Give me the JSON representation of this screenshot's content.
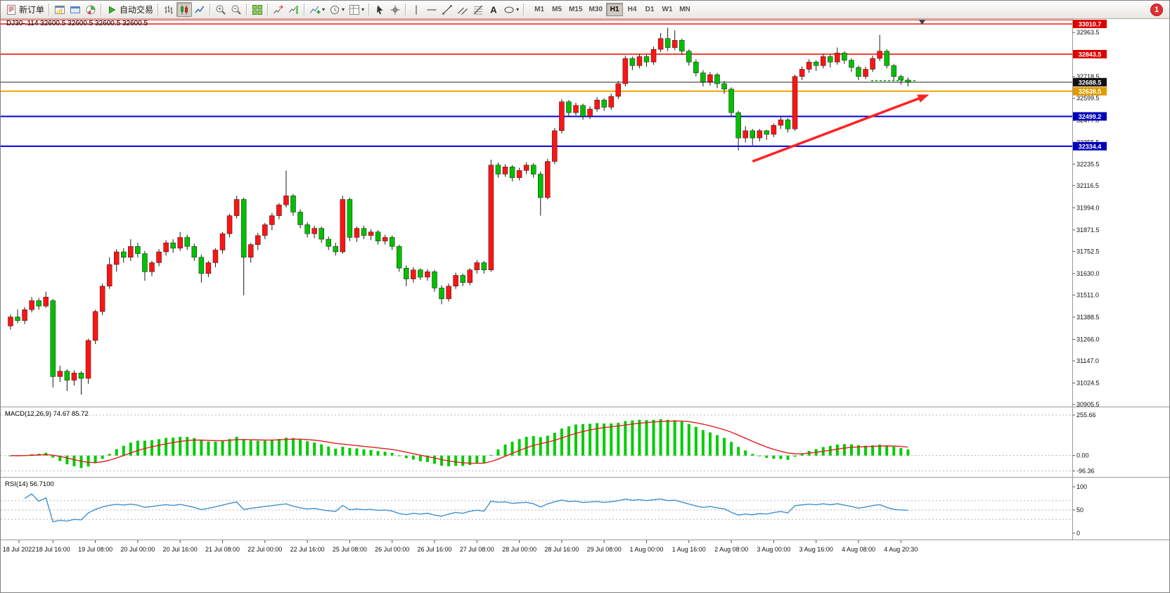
{
  "toolbar": {
    "buttons": [
      {
        "name": "new-order-button",
        "icon": "new-order-icon",
        "label": "新订单"
      },
      {
        "separator": true
      },
      {
        "name": "new-chart-button",
        "icon": "new-chart-icon"
      },
      {
        "name": "profiles-button",
        "icon": "profiles-icon"
      },
      {
        "name": "navigator-button",
        "icon": "navigator-icon"
      },
      {
        "separator": true
      },
      {
        "name": "auto-trading-button",
        "icon": "auto-trading-icon",
        "label": "自动交易"
      },
      {
        "separator": true
      },
      {
        "name": "bar-chart-button",
        "icon": "bar-chart-icon"
      },
      {
        "name": "candlestick-chart-button",
        "icon": "candlestick-chart-icon",
        "active": true
      },
      {
        "name": "line-chart-button",
        "icon": "line-chart-icon"
      },
      {
        "separator": true
      },
      {
        "name": "zoom-in-button",
        "icon": "zoom-in-icon"
      },
      {
        "name": "zoom-out-button",
        "icon": "zoom-out-icon"
      },
      {
        "separator": true
      },
      {
        "name": "tile-windows-button",
        "icon": "tile-windows-icon"
      },
      {
        "separator": true
      },
      {
        "name": "auto-scroll-button",
        "icon": "auto-scroll-icon"
      },
      {
        "name": "chart-shift-button",
        "icon": "chart-shift-icon"
      },
      {
        "separator": true
      },
      {
        "name": "indicators-button",
        "icon": "indicators-icon",
        "dropdown": true
      },
      {
        "name": "periods-button",
        "icon": "periods-icon",
        "dropdown": true
      },
      {
        "name": "templates-button",
        "icon": "templates-icon",
        "dropdown": true
      },
      {
        "separator": true
      },
      {
        "name": "cursor-button",
        "icon": "cursor-icon"
      },
      {
        "name": "crosshair-button",
        "icon": "crosshair-icon"
      },
      {
        "separator": true
      },
      {
        "name": "vertical-line-button",
        "icon": "vertical-line-icon"
      },
      {
        "name": "horizontal-line-button",
        "icon": "horizontal-line-icon"
      },
      {
        "name": "trendline-button",
        "icon": "trendline-icon"
      },
      {
        "name": "channel-button",
        "icon": "channel-icon"
      },
      {
        "name": "fibonacci-button",
        "icon": "fibonacci-icon"
      },
      {
        "name": "text-button",
        "icon": "text-icon"
      },
      {
        "name": "shapes-button",
        "icon": "shapes-icon",
        "dropdown": true
      },
      {
        "separator": true
      }
    ],
    "timeframes": [
      "M1",
      "M5",
      "M15",
      "M30",
      "H1",
      "H4",
      "D1",
      "W1",
      "MN"
    ],
    "active_timeframe": "H1",
    "notification_count": "1"
  },
  "chart": {
    "symbol_info": "DJ30-.114 32600.5 32600.5 32600.5 32600.5",
    "macd_label": "MACD(12,26,9) 74.67 85.72",
    "rsi_label": "RSI(14) 56.7100"
  },
  "chart_data": {
    "type": "candlestick",
    "symbol": "DJ30-.114",
    "timeframe": "H1",
    "bull_color": "#ff1414",
    "bear_color": "#00c000",
    "price_axis_range": [
      30898,
      33038
    ],
    "price_ticks": [
      32963.5,
      32841.0,
      32718.5,
      32599.5,
      32477.0,
      32355.5,
      32235.5,
      32116.5,
      31994.0,
      31871.5,
      31752.5,
      31630.0,
      31511.0,
      31388.5,
      31266.0,
      31147.0,
      31024.5,
      30905.5
    ],
    "horizontal_lines": [
      {
        "price": 33033.0,
        "color": "#ee0000",
        "width": 1,
        "badge": null,
        "badge_color": null
      },
      {
        "price": 33010.7,
        "color": "#ee0000",
        "width": 1.4,
        "badge": "33010.7",
        "badge_color": "#dd0000"
      },
      {
        "price": 32843.5,
        "color": "#ee0000",
        "width": 1.4,
        "badge": "32843.5",
        "badge_color": "#dd0000"
      },
      {
        "price": 32688.5,
        "color": "#222222",
        "width": 1,
        "badge": "32688.5",
        "badge_color": "#111111"
      },
      {
        "price": 32638.5,
        "color": "#eda400",
        "width": 2,
        "badge": "32638.5",
        "badge_color": "#e09c00"
      },
      {
        "price": 32499.2,
        "color": "#0000dd",
        "width": 2,
        "badge": "32499.2",
        "badge_color": "#0000bb"
      },
      {
        "price": 32334.4,
        "color": "#0000dd",
        "width": 2,
        "badge": "32334.4",
        "badge_color": "#0000bb"
      }
    ],
    "current_price": 32688.5,
    "ask_line_price": 32697.0,
    "time_labels": [
      "18 Jul 2022",
      "18 Jul 16:00",
      "19 Jul 08:00",
      "20 Jul 00:00",
      "20 Jul 16:00",
      "21 Jul 08:00",
      "22 Jul 00:00",
      "22 Jul 16:00",
      "25 Jul 08:00",
      "26 Jul 00:00",
      "26 Jul 16:00",
      "27 Jul 08:00",
      "28 Jul 00:00",
      "28 Jul 16:00",
      "29 Jul 08:00",
      "1 Aug 00:00",
      "1 Aug 16:00",
      "2 Aug 08:00",
      "3 Aug 00:00",
      "3 Aug 16:00",
      "4 Aug 08:00",
      "4 Aug 20:30"
    ],
    "label_every_n_candles": 6,
    "candles": [
      [
        31340,
        31405,
        31320,
        31390
      ],
      [
        31390,
        31430,
        31355,
        31370
      ],
      [
        31370,
        31445,
        31350,
        31430
      ],
      [
        31430,
        31500,
        31415,
        31480
      ],
      [
        31480,
        31495,
        31430,
        31450
      ],
      [
        31450,
        31530,
        31440,
        31500
      ],
      [
        31480,
        31490,
        31000,
        31060
      ],
      [
        31060,
        31120,
        31030,
        31090
      ],
      [
        31090,
        31100,
        30980,
        31040
      ],
      [
        31040,
        31095,
        31010,
        31080
      ],
      [
        31080,
        31090,
        30960,
        31050
      ],
      [
        31050,
        31270,
        31020,
        31260
      ],
      [
        31260,
        31430,
        31240,
        31420
      ],
      [
        31420,
        31575,
        31400,
        31560
      ],
      [
        31560,
        31720,
        31545,
        31680
      ],
      [
        31680,
        31765,
        31640,
        31750
      ],
      [
        31750,
        31770,
        31690,
        31720
      ],
      [
        31720,
        31820,
        31700,
        31780
      ],
      [
        31780,
        31800,
        31720,
        31740
      ],
      [
        31740,
        31755,
        31590,
        31640
      ],
      [
        31640,
        31700,
        31615,
        31690
      ],
      [
        31690,
        31765,
        31670,
        31750
      ],
      [
        31750,
        31815,
        31730,
        31800
      ],
      [
        31800,
        31820,
        31745,
        31770
      ],
      [
        31770,
        31860,
        31755,
        31830
      ],
      [
        31830,
        31845,
        31760,
        31780
      ],
      [
        31780,
        31795,
        31700,
        31720
      ],
      [
        31720,
        31735,
        31580,
        31630
      ],
      [
        31630,
        31700,
        31610,
        31690
      ],
      [
        31690,
        31770,
        31665,
        31760
      ],
      [
        31760,
        31860,
        31740,
        31850
      ],
      [
        31850,
        31960,
        31830,
        31950
      ],
      [
        31950,
        32060,
        31935,
        32040
      ],
      [
        32040,
        32050,
        31510,
        31720
      ],
      [
        31720,
        31800,
        31690,
        31790
      ],
      [
        31790,
        31855,
        31760,
        31840
      ],
      [
        31840,
        31910,
        31820,
        31900
      ],
      [
        31900,
        31965,
        31870,
        31950
      ],
      [
        31950,
        32020,
        31930,
        32010
      ],
      [
        32010,
        32200,
        31995,
        32060
      ],
      [
        32060,
        32070,
        31950,
        31970
      ],
      [
        31970,
        31985,
        31880,
        31900
      ],
      [
        31900,
        31915,
        31830,
        31850
      ],
      [
        31850,
        31895,
        31825,
        31880
      ],
      [
        31880,
        31890,
        31800,
        31820
      ],
      [
        31820,
        31835,
        31760,
        31780
      ],
      [
        31780,
        31800,
        31730,
        31750
      ],
      [
        31750,
        32060,
        31740,
        32040
      ],
      [
        32040,
        32050,
        31810,
        31830
      ],
      [
        31830,
        31890,
        31805,
        31880
      ],
      [
        31880,
        31895,
        31820,
        31840
      ],
      [
        31840,
        31875,
        31815,
        31860
      ],
      [
        31860,
        31870,
        31790,
        31810
      ],
      [
        31810,
        31845,
        31790,
        31830
      ],
      [
        31830,
        31840,
        31760,
        31780
      ],
      [
        31780,
        31790,
        31640,
        31660
      ],
      [
        31660,
        31675,
        31560,
        31600
      ],
      [
        31600,
        31665,
        31580,
        31650
      ],
      [
        31650,
        31660,
        31595,
        31610
      ],
      [
        31610,
        31655,
        31590,
        31640
      ],
      [
        31640,
        31650,
        31530,
        31550
      ],
      [
        31550,
        31565,
        31460,
        31490
      ],
      [
        31490,
        31575,
        31475,
        31560
      ],
      [
        31560,
        31635,
        31545,
        31620
      ],
      [
        31620,
        31630,
        31560,
        31580
      ],
      [
        31580,
        31660,
        31565,
        31650
      ],
      [
        31650,
        31705,
        31630,
        31690
      ],
      [
        31690,
        31700,
        31630,
        31650
      ],
      [
        31650,
        32260,
        31640,
        32230
      ],
      [
        32230,
        32245,
        32160,
        32180
      ],
      [
        32180,
        32235,
        32165,
        32220
      ],
      [
        32220,
        32230,
        32140,
        32160
      ],
      [
        32160,
        32215,
        32145,
        32200
      ],
      [
        32200,
        32245,
        32180,
        32230
      ],
      [
        32230,
        32240,
        32160,
        32180
      ],
      [
        32180,
        32195,
        31950,
        32050
      ],
      [
        32050,
        32265,
        32040,
        32250
      ],
      [
        32250,
        32435,
        32235,
        32420
      ],
      [
        32420,
        32595,
        32405,
        32580
      ],
      [
        32580,
        32590,
        32500,
        32520
      ],
      [
        32520,
        32575,
        32505,
        32560
      ],
      [
        32560,
        32570,
        32480,
        32500
      ],
      [
        32500,
        32555,
        32485,
        32540
      ],
      [
        32540,
        32605,
        32525,
        32590
      ],
      [
        32590,
        32600,
        32530,
        32550
      ],
      [
        32550,
        32625,
        32535,
        32610
      ],
      [
        32610,
        32695,
        32595,
        32680
      ],
      [
        32680,
        32835,
        32665,
        32820
      ],
      [
        32820,
        32830,
        32755,
        32780
      ],
      [
        32780,
        32845,
        32765,
        32830
      ],
      [
        32830,
        32840,
        32775,
        32800
      ],
      [
        32800,
        32885,
        32785,
        32870
      ],
      [
        32870,
        32960,
        32855,
        32930
      ],
      [
        32930,
        32990,
        32860,
        32880
      ],
      [
        32880,
        32975,
        32865,
        32920
      ],
      [
        32920,
        32930,
        32840,
        32860
      ],
      [
        32860,
        32870,
        32780,
        32800
      ],
      [
        32800,
        32815,
        32720,
        32740
      ],
      [
        32740,
        32755,
        32665,
        32690
      ],
      [
        32690,
        32745,
        32670,
        32730
      ],
      [
        32730,
        32740,
        32655,
        32680
      ],
      [
        32680,
        32695,
        32625,
        32650
      ],
      [
        32650,
        32660,
        32500,
        32520
      ],
      [
        32520,
        32530,
        32310,
        32380
      ],
      [
        32380,
        32445,
        32355,
        32420
      ],
      [
        32420,
        32430,
        32340,
        32380
      ],
      [
        32380,
        32430,
        32360,
        32420
      ],
      [
        32420,
        32425,
        32370,
        32400
      ],
      [
        32400,
        32460,
        32385,
        32450
      ],
      [
        32450,
        32495,
        32430,
        32480
      ],
      [
        32480,
        32490,
        32410,
        32430
      ],
      [
        32430,
        32730,
        32420,
        32720
      ],
      [
        32720,
        32775,
        32700,
        32760
      ],
      [
        32760,
        32815,
        32740,
        32800
      ],
      [
        32800,
        32810,
        32750,
        32780
      ],
      [
        32780,
        32845,
        32765,
        32830
      ],
      [
        32830,
        32840,
        32770,
        32800
      ],
      [
        32800,
        32880,
        32785,
        32850
      ],
      [
        32850,
        32860,
        32790,
        32810
      ],
      [
        32810,
        32820,
        32745,
        32770
      ],
      [
        32770,
        32780,
        32700,
        32720
      ],
      [
        32720,
        32775,
        32705,
        32760
      ],
      [
        32760,
        32835,
        32745,
        32820
      ],
      [
        32820,
        32950,
        32805,
        32860
      ],
      [
        32860,
        32870,
        32765,
        32780
      ],
      [
        32780,
        32790,
        32700,
        32720
      ],
      [
        32720,
        32730,
        32675,
        32700
      ],
      [
        32700,
        32715,
        32665,
        32688.5
      ]
    ],
    "arrow_annotation": {
      "from_index": 105,
      "from_price": 32250,
      "to_index": 130,
      "to_price": 32620,
      "color": "#ff2222"
    },
    "chart_shift_marker_index": 129,
    "indicators": [
      {
        "name": "MACD",
        "params": [
          12,
          26,
          9
        ],
        "current_values": [
          74.67,
          85.72
        ],
        "axis_ticks": [
          255.66,
          0.0,
          -96.36
        ],
        "histogram_color": "#00cc00",
        "signal_color": "#e02020"
      },
      {
        "name": "RSI",
        "params": [
          14
        ],
        "current_value": 56.71,
        "axis_ticks": [
          100,
          50,
          0
        ],
        "levels": [
          70,
          50,
          30
        ],
        "line_color": "#4090d0"
      }
    ]
  }
}
